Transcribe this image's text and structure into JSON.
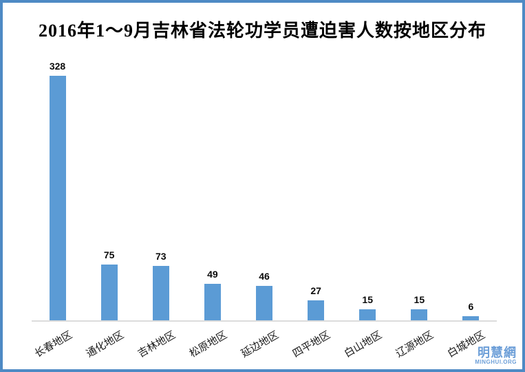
{
  "title": "2016年1～9月吉林省法轮功学员遭迫害人数按地区分布",
  "colors": {
    "bar": "#5B9BD5",
    "frame_border": "#4E8AC4",
    "axis_line": "#DCDCDC",
    "watermark": "#6D9FD8"
  },
  "watermark": {
    "name": "明慧網",
    "site": "MINGHUI.ORG"
  },
  "chart_data": {
    "type": "bar",
    "title": "2016年1～9月吉林省法轮功学员遭迫害人数按地区分布",
    "categories": [
      "长春地区",
      "通化地区",
      "吉林地区",
      "松原地区",
      "延边地区",
      "四平地区",
      "白山地区",
      "辽源地区",
      "白城地区"
    ],
    "values": [
      328,
      75,
      73,
      49,
      46,
      27,
      15,
      15,
      6
    ],
    "xlabel": "",
    "ylabel": "",
    "ylim": [
      0,
      340
    ],
    "grid": false,
    "data_labels": true,
    "legend_position": "none",
    "category_label_rotation_deg": -30
  }
}
